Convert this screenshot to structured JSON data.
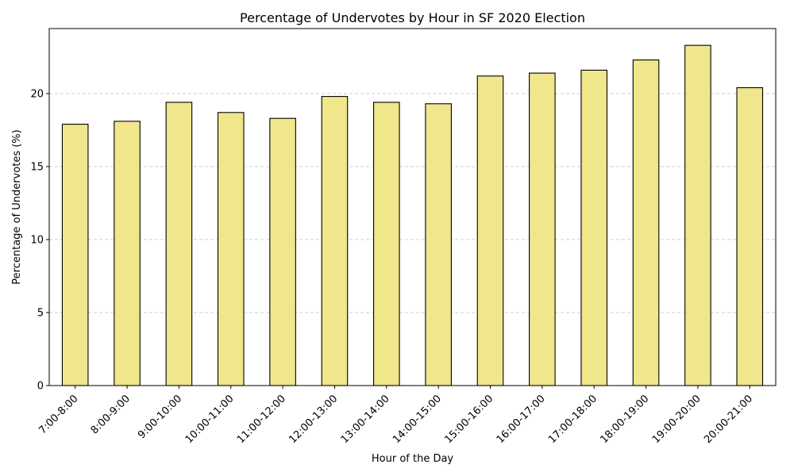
{
  "chart_data": {
    "type": "bar",
    "title": "Percentage of Undervotes by Hour in SF 2020 Election",
    "xlabel": "Hour of the Day",
    "ylabel": "Percentage of Undervotes (%)",
    "categories": [
      "7:00-8:00",
      "8:00-9:00",
      "9:00-10:00",
      "10:00-11:00",
      "11:00-12:00",
      "12:00-13:00",
      "13:00-14:00",
      "14:00-15:00",
      "15:00-16:00",
      "16:00-17:00",
      "17:00-18:00",
      "18:00-19:00",
      "19:00-20:00",
      "20:00-21:00"
    ],
    "values": [
      17.9,
      18.1,
      19.4,
      18.7,
      18.3,
      19.8,
      19.4,
      19.3,
      21.2,
      21.4,
      21.6,
      22.3,
      23.3,
      20.4
    ],
    "ylim": [
      0,
      24.45
    ],
    "yticks": [
      0,
      5,
      10,
      15,
      20
    ],
    "grid": "y-dashed",
    "colors": {
      "bar_fill": "#f0e68c",
      "bar_edge": "#000000",
      "grid": "#c8c8c8"
    }
  }
}
